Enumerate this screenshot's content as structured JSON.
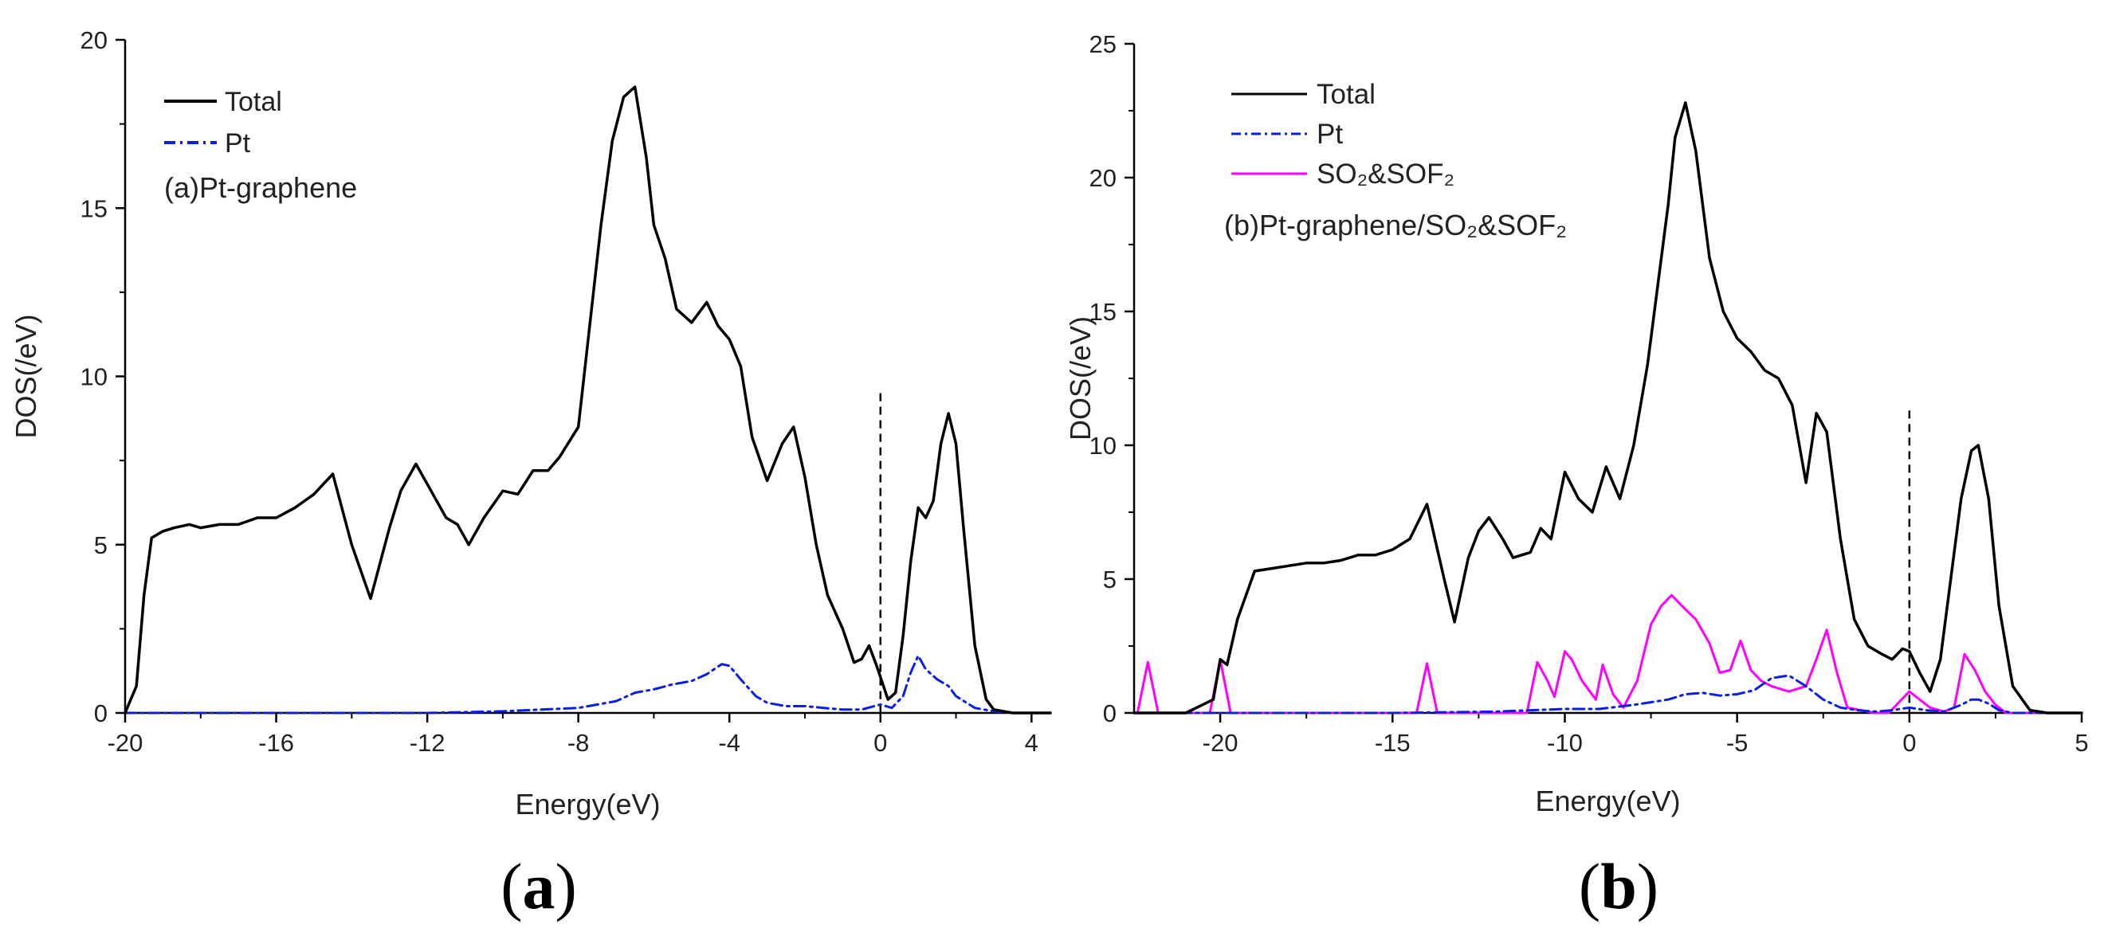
{
  "colors": {
    "total": "#000000",
    "pt": "#0b1fe0",
    "gas": "#ff00ff",
    "axis": "#000000"
  },
  "chart_data": [
    {
      "type": "line",
      "panel_label": "a",
      "xlabel": "Energy(eV)",
      "ylabel": "DOS(/eV)",
      "xlim": [
        -20,
        4.5
      ],
      "ylim": [
        0,
        20
      ],
      "xticks": [
        -20,
        -16,
        -12,
        -8,
        -4,
        0,
        4
      ],
      "yticks": [
        0,
        5,
        10,
        15,
        20
      ],
      "annotation": "(a)Pt-graphene",
      "fermi_level": 0,
      "series": [
        {
          "name": "Total",
          "style": "solid",
          "color_key": "total",
          "x": [
            -20,
            -19.7,
            -19.5,
            -19.3,
            -19.0,
            -18.7,
            -18.3,
            -18.0,
            -17.5,
            -17.0,
            -16.5,
            -16.0,
            -15.5,
            -15.0,
            -14.5,
            -14.0,
            -13.5,
            -13.0,
            -12.7,
            -12.3,
            -12.0,
            -11.5,
            -11.2,
            -10.9,
            -10.5,
            -10.0,
            -9.6,
            -9.2,
            -8.8,
            -8.5,
            -8.0,
            -7.7,
            -7.4,
            -7.1,
            -6.8,
            -6.5,
            -6.2,
            -6.0,
            -5.7,
            -5.4,
            -5.0,
            -4.6,
            -4.3,
            -4.0,
            -3.7,
            -3.4,
            -3.0,
            -2.6,
            -2.3,
            -2.0,
            -1.7,
            -1.4,
            -1.0,
            -0.7,
            -0.5,
            -0.3,
            -0.1,
            0.2,
            0.4,
            0.6,
            0.8,
            1.0,
            1.2,
            1.4,
            1.6,
            1.8,
            2.0,
            2.2,
            2.5,
            2.8,
            3.0,
            3.5,
            4.0,
            4.5
          ],
          "values": [
            0,
            0.8,
            3.5,
            5.2,
            5.4,
            5.5,
            5.6,
            5.5,
            5.6,
            5.6,
            5.8,
            5.8,
            6.1,
            6.5,
            7.1,
            5.0,
            3.4,
            5.5,
            6.6,
            7.4,
            6.8,
            5.8,
            5.6,
            5.0,
            5.8,
            6.6,
            6.5,
            7.2,
            7.2,
            7.6,
            8.5,
            11.5,
            14.5,
            17.0,
            18.3,
            18.6,
            16.5,
            14.5,
            13.5,
            12.0,
            11.6,
            12.2,
            11.5,
            11.1,
            10.3,
            8.2,
            6.9,
            8.0,
            8.5,
            7.0,
            5.0,
            3.5,
            2.5,
            1.5,
            1.6,
            2.0,
            1.4,
            0.4,
            0.6,
            2.3,
            4.5,
            6.1,
            5.8,
            6.3,
            8.0,
            8.9,
            8.0,
            5.5,
            2.0,
            0.4,
            0.1,
            0,
            0,
            0
          ]
        },
        {
          "name": "Pt",
          "style": "dashdot",
          "color_key": "pt",
          "x": [
            -20,
            -16,
            -12,
            -10,
            -8,
            -7,
            -6.5,
            -6,
            -5.5,
            -5,
            -4.6,
            -4.2,
            -4.0,
            -3.7,
            -3.3,
            -3.0,
            -2.5,
            -2.0,
            -1.5,
            -1.0,
            -0.5,
            0,
            0.3,
            0.6,
            0.8,
            1.0,
            1.2,
            1.5,
            1.8,
            2.0,
            2.5,
            3.0,
            3.5,
            4.0,
            4.5
          ],
          "values": [
            0,
            0,
            0,
            0.05,
            0.15,
            0.35,
            0.6,
            0.7,
            0.85,
            0.95,
            1.15,
            1.45,
            1.4,
            1.0,
            0.5,
            0.3,
            0.2,
            0.2,
            0.15,
            0.1,
            0.1,
            0.25,
            0.15,
            0.5,
            1.2,
            1.7,
            1.3,
            1.0,
            0.8,
            0.5,
            0.15,
            0.05,
            0,
            0,
            0
          ]
        }
      ]
    },
    {
      "type": "line",
      "panel_label": "b",
      "xlabel": "Energy(eV)",
      "ylabel": "DOS(/eV)",
      "xlim": [
        -22.5,
        5
      ],
      "ylim": [
        0,
        25
      ],
      "xticks": [
        -20,
        -15,
        -10,
        -5,
        0,
        5
      ],
      "yticks": [
        0,
        5,
        10,
        15,
        20,
        25
      ],
      "annotation": "(b)Pt-graphene/SO₂&SOF₂",
      "fermi_level": 0,
      "series": [
        {
          "name": "Total",
          "style": "solid",
          "color_key": "total",
          "x": [
            -22.5,
            -21,
            -20.2,
            -20,
            -19.8,
            -19.5,
            -19.0,
            -18.5,
            -18.0,
            -17.5,
            -17.0,
            -16.5,
            -16.0,
            -15.5,
            -15.0,
            -14.5,
            -14.0,
            -13.5,
            -13.2,
            -12.8,
            -12.5,
            -12.2,
            -11.8,
            -11.5,
            -11.0,
            -10.7,
            -10.4,
            -10.0,
            -9.6,
            -9.2,
            -8.8,
            -8.4,
            -8.0,
            -7.6,
            -7.3,
            -7.0,
            -6.8,
            -6.5,
            -6.2,
            -5.8,
            -5.4,
            -5.0,
            -4.6,
            -4.2,
            -3.8,
            -3.4,
            -3.0,
            -2.7,
            -2.4,
            -2.0,
            -1.6,
            -1.2,
            -0.8,
            -0.5,
            -0.2,
            0,
            0.3,
            0.6,
            0.9,
            1.2,
            1.5,
            1.8,
            2.0,
            2.3,
            2.6,
            3.0,
            3.5,
            4.0,
            5.0
          ],
          "values": [
            0,
            0,
            0.5,
            2.0,
            1.8,
            3.5,
            5.3,
            5.4,
            5.5,
            5.6,
            5.6,
            5.7,
            5.9,
            5.9,
            6.1,
            6.5,
            7.8,
            5.0,
            3.4,
            5.8,
            6.8,
            7.3,
            6.5,
            5.8,
            6.0,
            6.9,
            6.5,
            9.0,
            8.0,
            7.5,
            9.2,
            8.0,
            10.0,
            13.0,
            16.0,
            19.0,
            21.5,
            22.8,
            21.0,
            17.0,
            15.0,
            14.0,
            13.5,
            12.8,
            12.5,
            11.5,
            8.6,
            11.2,
            10.5,
            6.5,
            3.5,
            2.5,
            2.2,
            2.0,
            2.4,
            2.3,
            1.5,
            0.8,
            2.0,
            5.0,
            8.0,
            9.8,
            10.0,
            8.0,
            4.0,
            1.0,
            0.1,
            0,
            0
          ]
        },
        {
          "name": "Pt",
          "style": "dashdot",
          "color_key": "pt",
          "x": [
            -22.5,
            -15,
            -12,
            -10,
            -9,
            -8,
            -7,
            -6.5,
            -6,
            -5.5,
            -5,
            -4.5,
            -4,
            -3.5,
            -3,
            -2.5,
            -2,
            -1.5,
            -1,
            -0.5,
            0,
            0.5,
            1.0,
            1.5,
            1.8,
            2.0,
            2.3,
            2.6,
            3.0,
            3.5,
            5.0
          ],
          "values": [
            0,
            0,
            0.05,
            0.15,
            0.15,
            0.3,
            0.5,
            0.7,
            0.75,
            0.65,
            0.7,
            0.85,
            1.3,
            1.4,
            1.0,
            0.5,
            0.2,
            0.1,
            0.05,
            0.1,
            0.2,
            0.1,
            0.05,
            0.3,
            0.5,
            0.5,
            0.35,
            0.1,
            0,
            0,
            0
          ]
        },
        {
          "name": "SO₂&SOF₂",
          "style": "solid",
          "color_key": "gas",
          "x": [
            -22.5,
            -22.4,
            -22.1,
            -21.8,
            -20.3,
            -20.0,
            -19.7,
            -14.3,
            -14.0,
            -13.7,
            -11.1,
            -10.8,
            -10.5,
            -10.3,
            -10.0,
            -9.8,
            -9.5,
            -9.1,
            -8.9,
            -8.6,
            -8.3,
            -7.9,
            -7.5,
            -7.2,
            -6.9,
            -6.6,
            -6.2,
            -5.8,
            -5.5,
            -5.2,
            -4.9,
            -4.6,
            -4.3,
            -4.0,
            -3.5,
            -3.0,
            -2.7,
            -2.4,
            -2.1,
            -1.8,
            -1.0,
            -0.6,
            -0.3,
            0,
            0.3,
            0.6,
            1.0,
            1.3,
            1.6,
            1.9,
            2.2,
            2.5,
            2.8,
            3.2,
            5.0
          ],
          "values": [
            0,
            0,
            1.9,
            0,
            0,
            2.0,
            0,
            0,
            1.85,
            0,
            0,
            1.9,
            1.2,
            0.6,
            2.3,
            2.0,
            1.2,
            0.5,
            1.8,
            0.7,
            0.2,
            1.2,
            3.3,
            4.0,
            4.4,
            4.0,
            3.5,
            2.6,
            1.5,
            1.6,
            2.7,
            1.6,
            1.2,
            1.0,
            0.8,
            1.0,
            2.0,
            3.1,
            1.5,
            0.2,
            0,
            0,
            0.4,
            0.8,
            0.5,
            0.2,
            0.05,
            0.2,
            2.2,
            1.6,
            0.8,
            0.3,
            0,
            0,
            0
          ]
        }
      ]
    }
  ],
  "panel_captions": [
    "(a)",
    "(b)"
  ],
  "captions_struct": [
    {
      "open": "(",
      "letter": "a",
      "close": ")"
    },
    {
      "open": "(",
      "letter": "b",
      "close": ")"
    }
  ],
  "legends": [
    {
      "items": [
        {
          "label": "Total"
        },
        {
          "label": "Pt"
        }
      ]
    },
    {
      "items": [
        {
          "label": "Total"
        },
        {
          "label": "Pt"
        },
        {
          "label": "SO₂&SOF₂"
        }
      ]
    }
  ]
}
